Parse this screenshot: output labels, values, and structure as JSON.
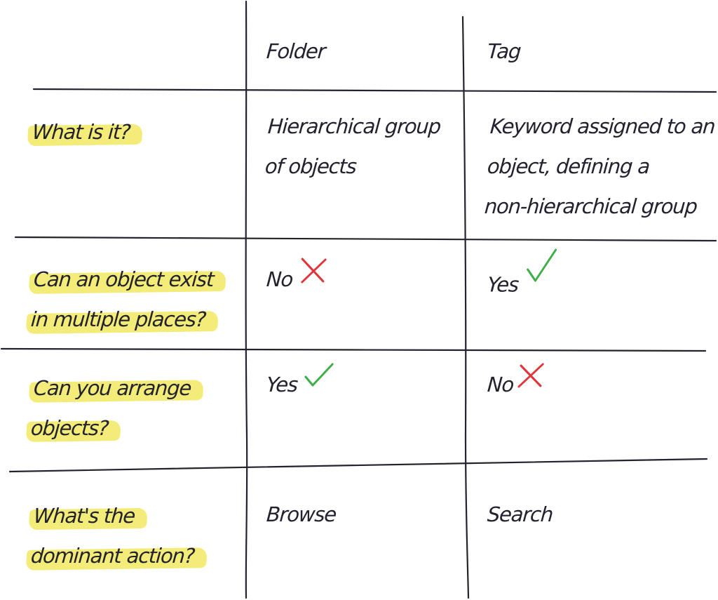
{
  "columns": {
    "folder": "Folder",
    "tag": "Tag"
  },
  "rows": [
    {
      "question": [
        "What is it?"
      ],
      "folder": [
        "Hierarchical group",
        "of objects"
      ],
      "tag": [
        "Keyword assigned to an",
        "object, defining a",
        "non-hierarchical group"
      ]
    },
    {
      "question": [
        "Can an object exist",
        "in multiple places?"
      ],
      "folder": "No",
      "folder_mark": "cross-icon",
      "tag": "Yes",
      "tag_mark": "check-icon"
    },
    {
      "question": [
        "Can you arrange",
        "objects?"
      ],
      "folder": "Yes",
      "folder_mark": "check-icon",
      "tag": "No",
      "tag_mark": "cross-icon"
    },
    {
      "question": [
        "What's the",
        "dominant action?"
      ],
      "folder": "Browse",
      "tag": "Search"
    }
  ],
  "colors": {
    "ink": "#23232f",
    "highlight": "#f4ec79",
    "check": "#3fae49",
    "cross": "#e0353b"
  }
}
